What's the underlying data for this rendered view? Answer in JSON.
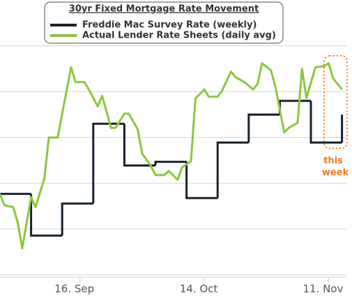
{
  "chart_data": {
    "type": "line",
    "title": "30yr Fixed Mortgage Rate Movement",
    "annotation": [
      "this",
      "week"
    ],
    "xlim": [
      "08-29",
      "11-15"
    ],
    "xticks": [
      {
        "value": "09-16",
        "label": "16. Sep"
      },
      {
        "value": "10-14",
        "label": "14. Oct"
      },
      {
        "value": "11-11",
        "label": "11. Nov"
      }
    ],
    "ylim": [
      0.95,
      7
    ],
    "yticks": [
      1,
      2,
      3,
      4,
      5,
      6
    ],
    "grid": true,
    "series": [
      {
        "name": "Freddie Mac Survey Rate (weekly)",
        "color": "#17222e",
        "step": true,
        "x": [
          "08-29",
          "09-05",
          "09-12",
          "09-19",
          "09-26",
          "10-03",
          "10-10",
          "10-17",
          "10-24",
          "10-31",
          "11-07",
          "11-14"
        ],
        "values": [
          2.77,
          1.86,
          2.56,
          4.3,
          3.39,
          3.47,
          2.68,
          3.89,
          4.5,
          4.8,
          3.89,
          4.5
        ]
      },
      {
        "name": "Actual Lender Rate Sheets (daily avg)",
        "color": "#8cc63f",
        "step": false,
        "x": [
          "08-29",
          "08-30",
          "09-01",
          "09-02",
          "09-03",
          "09-05",
          "09-06",
          "09-08",
          "09-09",
          "09-11",
          "09-12",
          "09-14",
          "09-15",
          "09-17",
          "09-18",
          "09-20",
          "09-21",
          "09-23",
          "09-24",
          "09-26",
          "09-27",
          "09-29",
          "09-30",
          "10-02",
          "10-03",
          "10-05",
          "10-06",
          "10-08",
          "10-09",
          "10-11",
          "10-12",
          "10-14",
          "10-15",
          "10-17",
          "10-18",
          "10-20",
          "10-21",
          "10-23",
          "10-25",
          "10-26",
          "10-27",
          "10-29",
          "10-30",
          "11-01",
          "11-02",
          "11-04",
          "11-05",
          "11-06",
          "11-08",
          "11-10",
          "11-11",
          "11-12",
          "11-14"
        ],
        "values": [
          2.77,
          2.52,
          2.48,
          2.14,
          1.58,
          2.7,
          2.48,
          3.11,
          4.0,
          4.0,
          4.52,
          5.53,
          5.21,
          5.21,
          5.05,
          4.68,
          4.91,
          4.21,
          4.21,
          4.52,
          4.52,
          4.18,
          3.65,
          3.38,
          3.18,
          3.18,
          3.27,
          3.08,
          3.35,
          3.48,
          4.85,
          5.05,
          4.89,
          4.89,
          5.02,
          5.44,
          5.32,
          5.21,
          5.05,
          5.17,
          5.62,
          5.47,
          5.11,
          4.11,
          4.21,
          4.32,
          5.5,
          4.86,
          5.53,
          5.56,
          5.62,
          5.29,
          5.05
        ]
      }
    ]
  }
}
